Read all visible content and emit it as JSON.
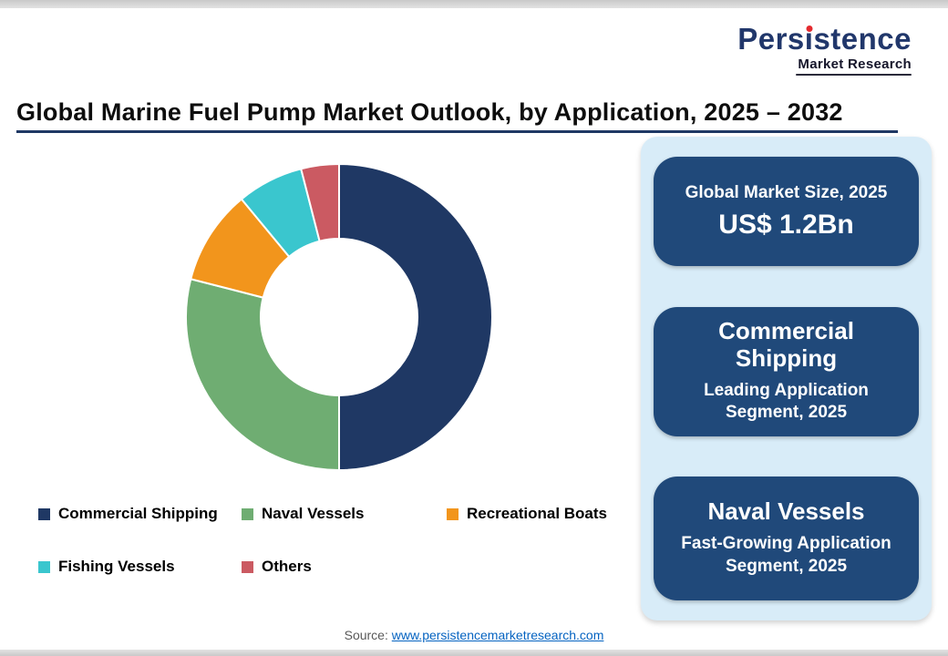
{
  "logo": {
    "brand_pre": "Pers",
    "brand_i": "ı",
    "brand_post": "stence",
    "tagline": "Market Research"
  },
  "header": {
    "title": "Global Marine Fuel Pump Market Outlook, by Application, 2025 – 2032"
  },
  "chart_data": {
    "type": "pie",
    "subtype": "donut",
    "title": "Global Marine Fuel Pump Market Outlook, by Application, 2025 – 2032",
    "categories": [
      "Commercial Shipping",
      "Naval Vessels",
      "Recreational Boats",
      "Fishing Vessels",
      "Others"
    ],
    "values": [
      50,
      29,
      10,
      7,
      4
    ],
    "values_are_estimates": true,
    "colors": [
      "#1F3864",
      "#6FAD72",
      "#F2951C",
      "#3AC6CE",
      "#CB5A62"
    ],
    "legend_position": "bottom",
    "data_labels_shown": false
  },
  "sidebar": {
    "cards": [
      {
        "title": "Global Market Size, 2025",
        "value": "US$ 1.2Bn"
      },
      {
        "title": "Commercial Shipping",
        "subtitle": "Leading Application Segment, 2025"
      },
      {
        "title": "Naval Vessels",
        "subtitle": "Fast-Growing Application Segment, 2025"
      }
    ]
  },
  "footer": {
    "source_label": "Source:",
    "source_link_text": "www.persistencemarketresearch.com"
  }
}
